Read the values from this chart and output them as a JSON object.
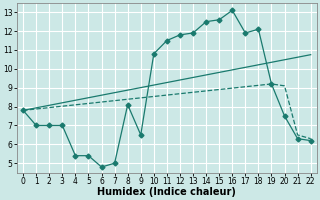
{
  "background_color": "#cce8e6",
  "grid_color": "#ffffff",
  "line_color": "#1a7a6e",
  "xlabel": "Humidex (Indice chaleur)",
  "xlabel_fontsize": 7,
  "xlim": [
    -0.5,
    22.5
  ],
  "ylim": [
    4.5,
    13.5
  ],
  "xticks": [
    0,
    1,
    2,
    3,
    4,
    5,
    6,
    7,
    8,
    9,
    10,
    11,
    12,
    13,
    14,
    15,
    16,
    17,
    18,
    19,
    20,
    21,
    22
  ],
  "yticks": [
    5,
    6,
    7,
    8,
    9,
    10,
    11,
    12,
    13
  ],
  "line1_x": [
    0,
    1,
    2,
    3,
    4,
    5,
    6,
    7,
    8,
    9,
    10,
    11,
    12,
    13,
    14,
    15,
    16,
    17,
    18,
    19,
    20,
    21,
    22
  ],
  "line1_y": [
    7.8,
    7.0,
    7.0,
    7.0,
    5.4,
    5.4,
    4.8,
    5.0,
    8.1,
    6.5,
    10.8,
    11.5,
    11.8,
    11.9,
    12.5,
    12.6,
    13.1,
    11.9,
    12.1,
    9.2,
    7.5,
    6.3,
    6.2
  ],
  "line2_x": [
    0,
    22
  ],
  "line2_y": [
    7.8,
    10.75
  ],
  "line3_x": [
    0,
    19,
    20,
    21,
    22
  ],
  "line3_y": [
    7.8,
    9.2,
    9.1,
    6.5,
    6.3
  ]
}
